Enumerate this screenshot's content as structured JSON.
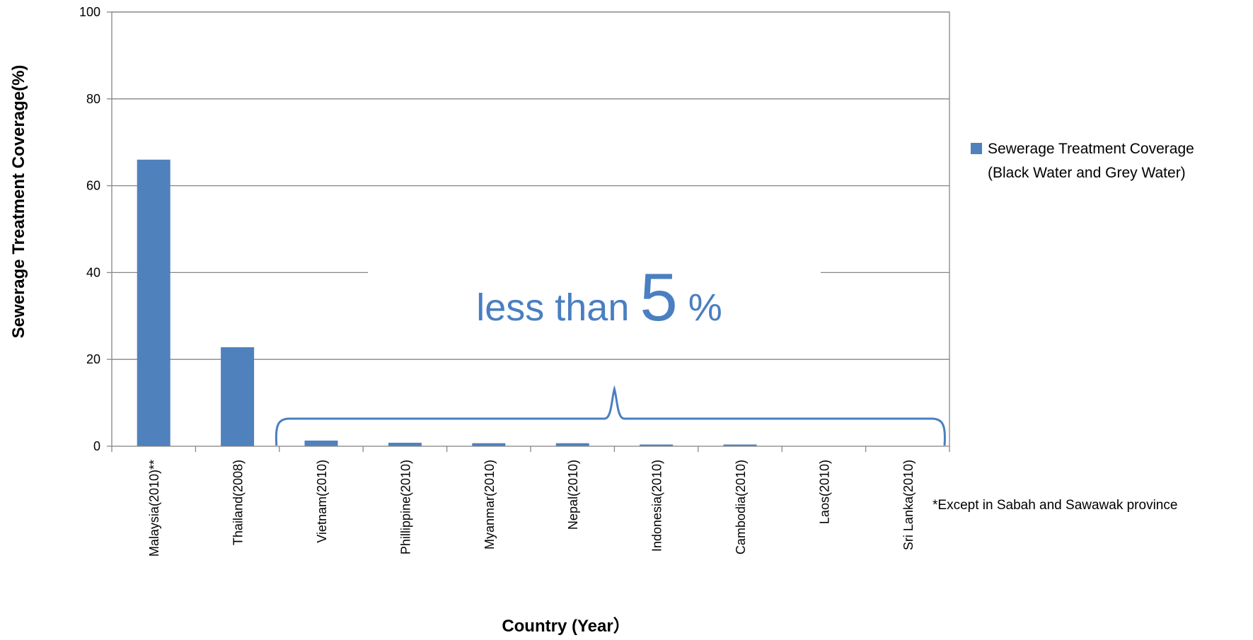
{
  "chart_data": {
    "type": "bar",
    "categories": [
      "Malaysia(2010)**",
      "Thailand(2008)",
      "Vietnam(2010)",
      "Phillippine(2010)",
      "Myanmar(2010)",
      "Nepal(2010)",
      "Indonesia(2010)",
      "Cambodia(2010)",
      "Laos(2010)",
      "Sri Lanka(2010)"
    ],
    "series": [
      {
        "name": "Sewerage Treatment Coverage (Black Water and Grey Water)",
        "legend_lines": [
          "Sewerage Treatment Coverage",
          "(Black Water and Grey Water)"
        ],
        "color": "#4f81bd",
        "values": [
          66,
          22.8,
          1.3,
          0.8,
          0.7,
          0.7,
          0.4,
          0.4,
          0,
          0
        ]
      }
    ],
    "xlabel": "Country (Year）",
    "ylabel": "Sewerage Treatment Coverage(%)",
    "ylim": [
      0,
      100
    ],
    "yticks": [
      0,
      20,
      40,
      60,
      80,
      100
    ],
    "grid": true,
    "legend_position": "right",
    "annotation": {
      "text_before": "less than ",
      "number": "5",
      "text_after": " %",
      "color": "#4a7fc1"
    },
    "footnote": "*Except in Sabah and Sawawak province"
  }
}
